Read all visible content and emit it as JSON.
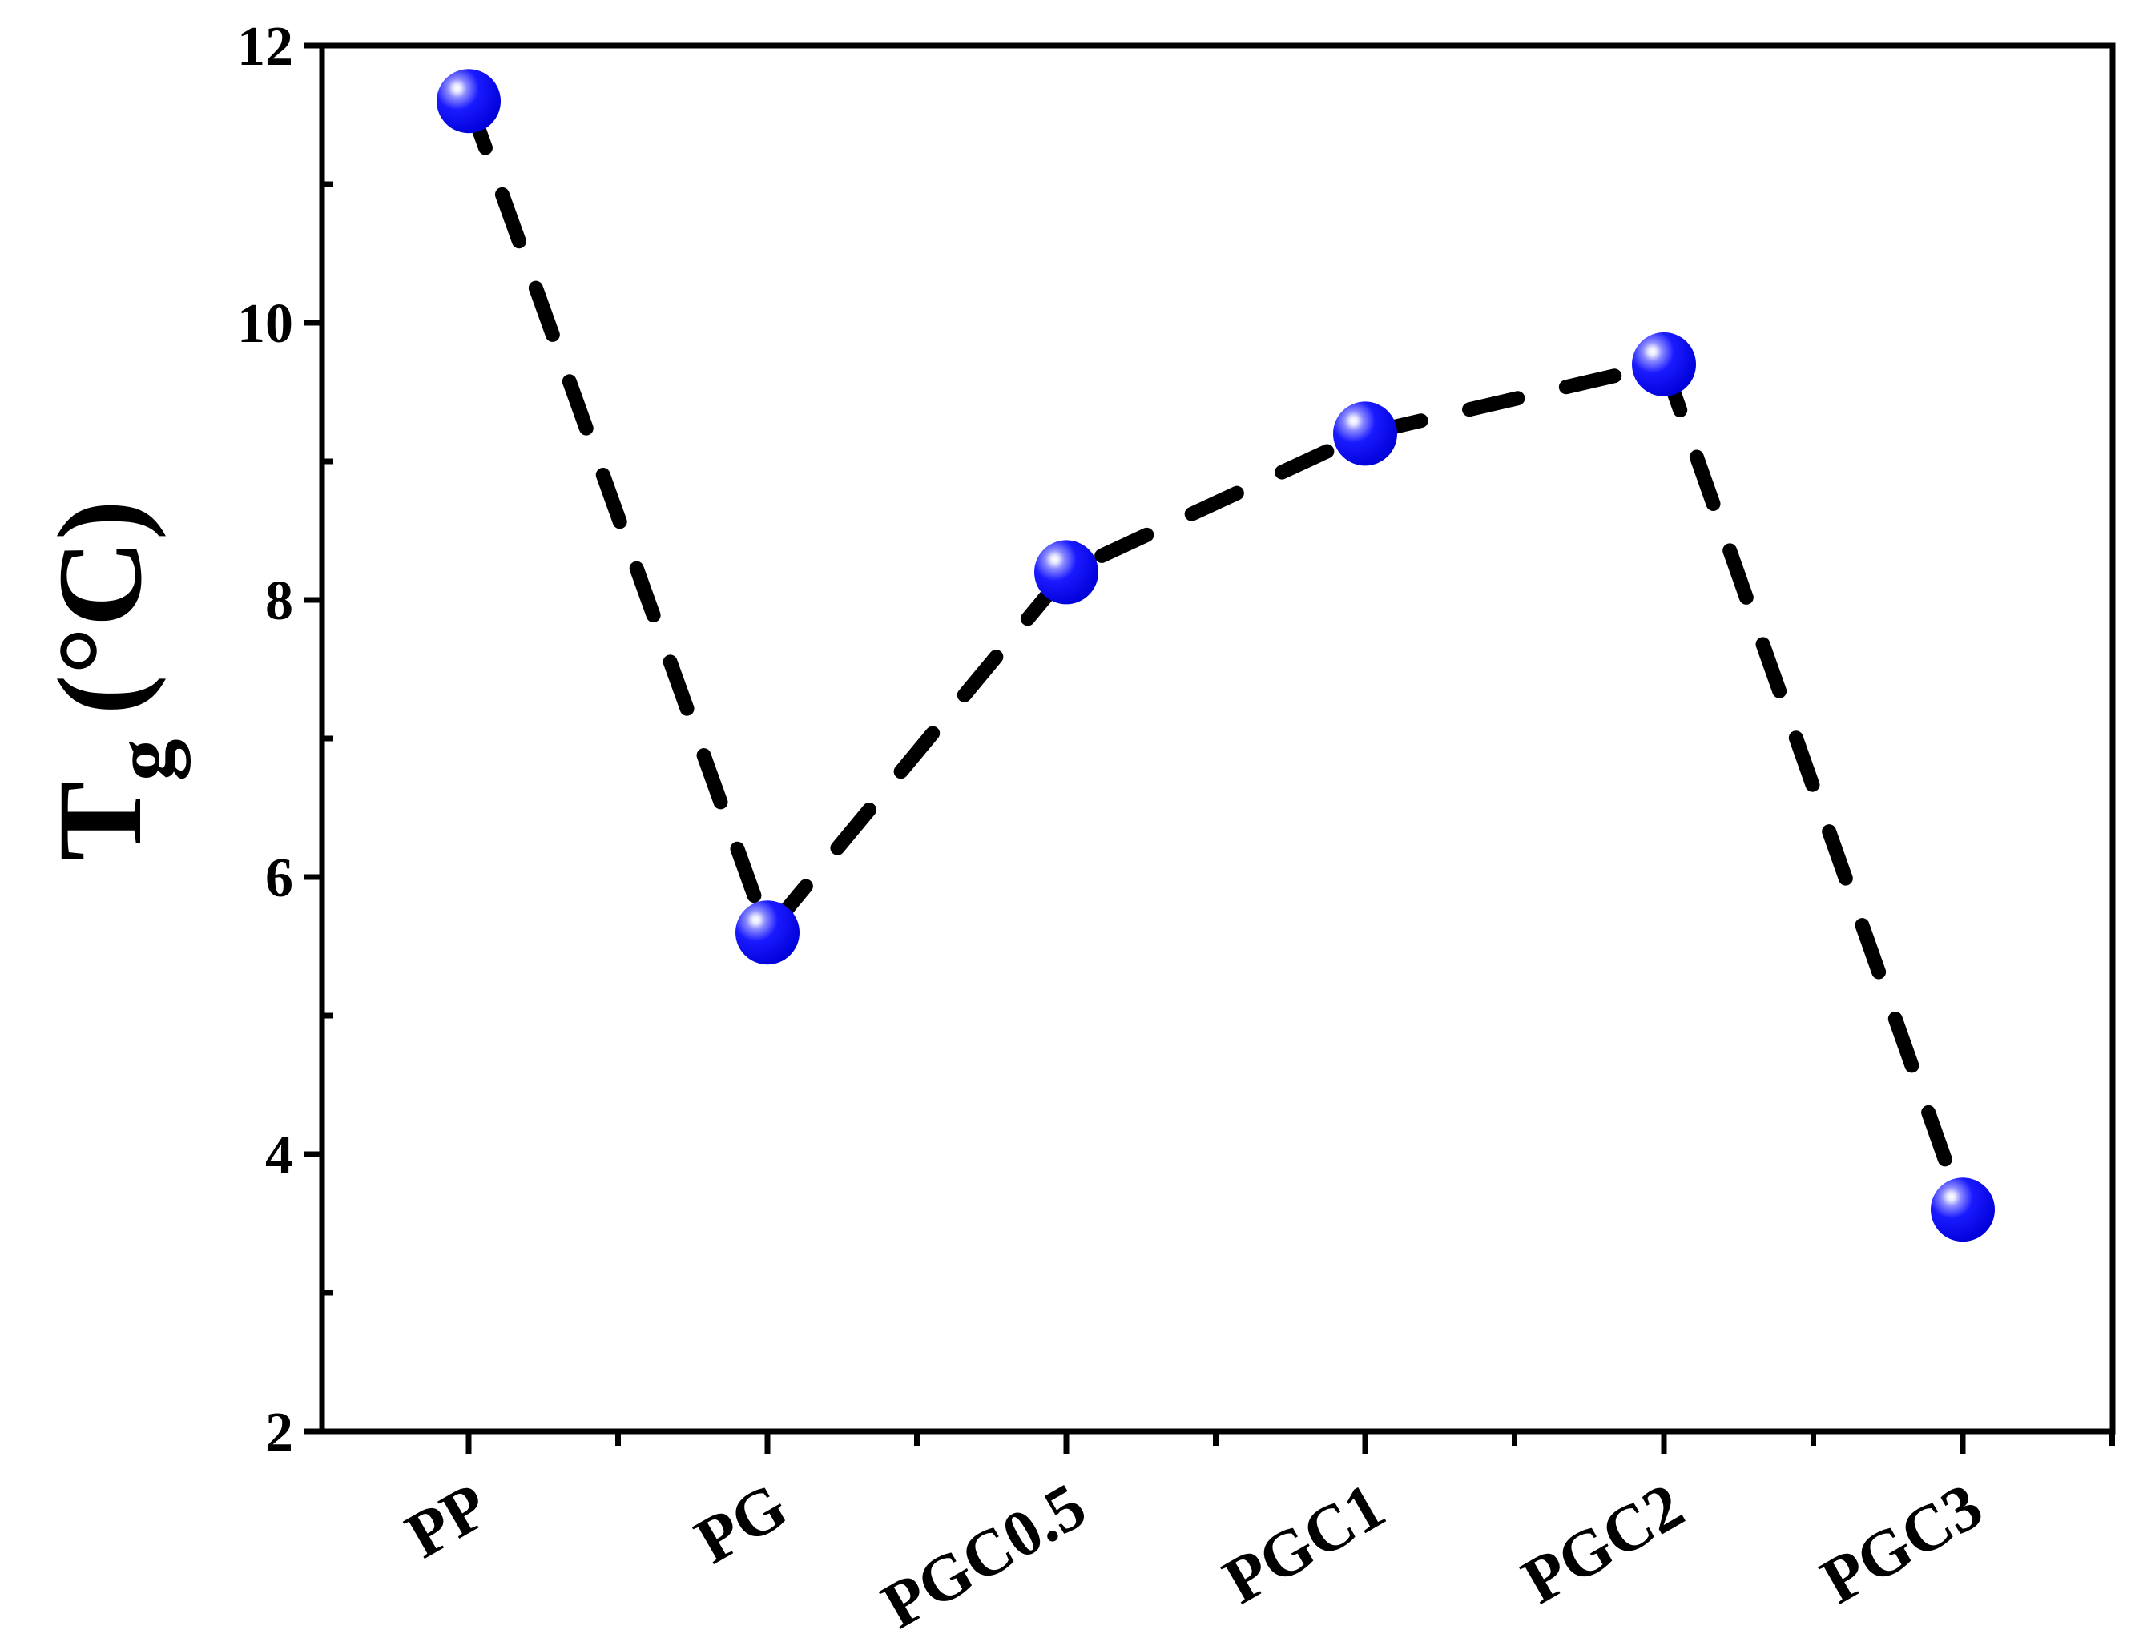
{
  "chart_data": {
    "type": "line",
    "categories": [
      "PP",
      "PG",
      "PGC0.5",
      "PGC1",
      "PGC2",
      "PGC3"
    ],
    "series": [
      {
        "values": [
          11.6,
          5.6,
          8.2,
          9.2,
          9.7,
          3.6
        ]
      }
    ],
    "ylabel_main": "T",
    "ylabel_sub": "g",
    "ylabel_unit": "(°C)",
    "xlabel": "",
    "title": "",
    "ylim": [
      2,
      12
    ],
    "yticks": [
      2,
      4,
      6,
      8,
      10,
      12
    ],
    "yticklabels": [
      "2",
      "4",
      "6",
      "8",
      "10",
      "12"
    ],
    "grid": false,
    "line_style": "dashed",
    "line_color": "#000000",
    "marker_color": "#0000ee",
    "marker_highlight": "#ffffff"
  }
}
